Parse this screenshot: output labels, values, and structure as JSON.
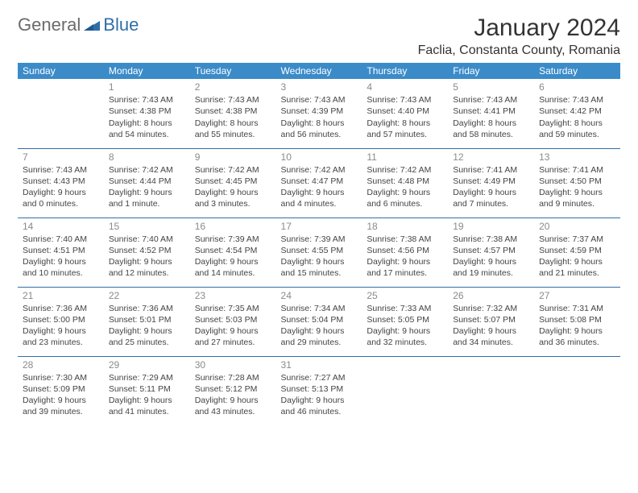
{
  "brand": {
    "part1": "General",
    "part2": "Blue"
  },
  "title": "January 2024",
  "location": "Faclia, Constanta County, Romania",
  "colors": {
    "header_bg": "#3b8bc9",
    "row_border": "#2f6fa8",
    "daynum": "#8a8a8a",
    "text": "#444444"
  },
  "day_headers": [
    "Sunday",
    "Monday",
    "Tuesday",
    "Wednesday",
    "Thursday",
    "Friday",
    "Saturday"
  ],
  "weeks": [
    [
      {
        "num": "",
        "l1": "",
        "l2": "",
        "l3": "",
        "l4": ""
      },
      {
        "num": "1",
        "l1": "Sunrise: 7:43 AM",
        "l2": "Sunset: 4:38 PM",
        "l3": "Daylight: 8 hours",
        "l4": "and 54 minutes."
      },
      {
        "num": "2",
        "l1": "Sunrise: 7:43 AM",
        "l2": "Sunset: 4:38 PM",
        "l3": "Daylight: 8 hours",
        "l4": "and 55 minutes."
      },
      {
        "num": "3",
        "l1": "Sunrise: 7:43 AM",
        "l2": "Sunset: 4:39 PM",
        "l3": "Daylight: 8 hours",
        "l4": "and 56 minutes."
      },
      {
        "num": "4",
        "l1": "Sunrise: 7:43 AM",
        "l2": "Sunset: 4:40 PM",
        "l3": "Daylight: 8 hours",
        "l4": "and 57 minutes."
      },
      {
        "num": "5",
        "l1": "Sunrise: 7:43 AM",
        "l2": "Sunset: 4:41 PM",
        "l3": "Daylight: 8 hours",
        "l4": "and 58 minutes."
      },
      {
        "num": "6",
        "l1": "Sunrise: 7:43 AM",
        "l2": "Sunset: 4:42 PM",
        "l3": "Daylight: 8 hours",
        "l4": "and 59 minutes."
      }
    ],
    [
      {
        "num": "7",
        "l1": "Sunrise: 7:43 AM",
        "l2": "Sunset: 4:43 PM",
        "l3": "Daylight: 9 hours",
        "l4": "and 0 minutes."
      },
      {
        "num": "8",
        "l1": "Sunrise: 7:42 AM",
        "l2": "Sunset: 4:44 PM",
        "l3": "Daylight: 9 hours",
        "l4": "and 1 minute."
      },
      {
        "num": "9",
        "l1": "Sunrise: 7:42 AM",
        "l2": "Sunset: 4:45 PM",
        "l3": "Daylight: 9 hours",
        "l4": "and 3 minutes."
      },
      {
        "num": "10",
        "l1": "Sunrise: 7:42 AM",
        "l2": "Sunset: 4:47 PM",
        "l3": "Daylight: 9 hours",
        "l4": "and 4 minutes."
      },
      {
        "num": "11",
        "l1": "Sunrise: 7:42 AM",
        "l2": "Sunset: 4:48 PM",
        "l3": "Daylight: 9 hours",
        "l4": "and 6 minutes."
      },
      {
        "num": "12",
        "l1": "Sunrise: 7:41 AM",
        "l2": "Sunset: 4:49 PM",
        "l3": "Daylight: 9 hours",
        "l4": "and 7 minutes."
      },
      {
        "num": "13",
        "l1": "Sunrise: 7:41 AM",
        "l2": "Sunset: 4:50 PM",
        "l3": "Daylight: 9 hours",
        "l4": "and 9 minutes."
      }
    ],
    [
      {
        "num": "14",
        "l1": "Sunrise: 7:40 AM",
        "l2": "Sunset: 4:51 PM",
        "l3": "Daylight: 9 hours",
        "l4": "and 10 minutes."
      },
      {
        "num": "15",
        "l1": "Sunrise: 7:40 AM",
        "l2": "Sunset: 4:52 PM",
        "l3": "Daylight: 9 hours",
        "l4": "and 12 minutes."
      },
      {
        "num": "16",
        "l1": "Sunrise: 7:39 AM",
        "l2": "Sunset: 4:54 PM",
        "l3": "Daylight: 9 hours",
        "l4": "and 14 minutes."
      },
      {
        "num": "17",
        "l1": "Sunrise: 7:39 AM",
        "l2": "Sunset: 4:55 PM",
        "l3": "Daylight: 9 hours",
        "l4": "and 15 minutes."
      },
      {
        "num": "18",
        "l1": "Sunrise: 7:38 AM",
        "l2": "Sunset: 4:56 PM",
        "l3": "Daylight: 9 hours",
        "l4": "and 17 minutes."
      },
      {
        "num": "19",
        "l1": "Sunrise: 7:38 AM",
        "l2": "Sunset: 4:57 PM",
        "l3": "Daylight: 9 hours",
        "l4": "and 19 minutes."
      },
      {
        "num": "20",
        "l1": "Sunrise: 7:37 AM",
        "l2": "Sunset: 4:59 PM",
        "l3": "Daylight: 9 hours",
        "l4": "and 21 minutes."
      }
    ],
    [
      {
        "num": "21",
        "l1": "Sunrise: 7:36 AM",
        "l2": "Sunset: 5:00 PM",
        "l3": "Daylight: 9 hours",
        "l4": "and 23 minutes."
      },
      {
        "num": "22",
        "l1": "Sunrise: 7:36 AM",
        "l2": "Sunset: 5:01 PM",
        "l3": "Daylight: 9 hours",
        "l4": "and 25 minutes."
      },
      {
        "num": "23",
        "l1": "Sunrise: 7:35 AM",
        "l2": "Sunset: 5:03 PM",
        "l3": "Daylight: 9 hours",
        "l4": "and 27 minutes."
      },
      {
        "num": "24",
        "l1": "Sunrise: 7:34 AM",
        "l2": "Sunset: 5:04 PM",
        "l3": "Daylight: 9 hours",
        "l4": "and 29 minutes."
      },
      {
        "num": "25",
        "l1": "Sunrise: 7:33 AM",
        "l2": "Sunset: 5:05 PM",
        "l3": "Daylight: 9 hours",
        "l4": "and 32 minutes."
      },
      {
        "num": "26",
        "l1": "Sunrise: 7:32 AM",
        "l2": "Sunset: 5:07 PM",
        "l3": "Daylight: 9 hours",
        "l4": "and 34 minutes."
      },
      {
        "num": "27",
        "l1": "Sunrise: 7:31 AM",
        "l2": "Sunset: 5:08 PM",
        "l3": "Daylight: 9 hours",
        "l4": "and 36 minutes."
      }
    ],
    [
      {
        "num": "28",
        "l1": "Sunrise: 7:30 AM",
        "l2": "Sunset: 5:09 PM",
        "l3": "Daylight: 9 hours",
        "l4": "and 39 minutes."
      },
      {
        "num": "29",
        "l1": "Sunrise: 7:29 AM",
        "l2": "Sunset: 5:11 PM",
        "l3": "Daylight: 9 hours",
        "l4": "and 41 minutes."
      },
      {
        "num": "30",
        "l1": "Sunrise: 7:28 AM",
        "l2": "Sunset: 5:12 PM",
        "l3": "Daylight: 9 hours",
        "l4": "and 43 minutes."
      },
      {
        "num": "31",
        "l1": "Sunrise: 7:27 AM",
        "l2": "Sunset: 5:13 PM",
        "l3": "Daylight: 9 hours",
        "l4": "and 46 minutes."
      },
      {
        "num": "",
        "l1": "",
        "l2": "",
        "l3": "",
        "l4": ""
      },
      {
        "num": "",
        "l1": "",
        "l2": "",
        "l3": "",
        "l4": ""
      },
      {
        "num": "",
        "l1": "",
        "l2": "",
        "l3": "",
        "l4": ""
      }
    ]
  ]
}
